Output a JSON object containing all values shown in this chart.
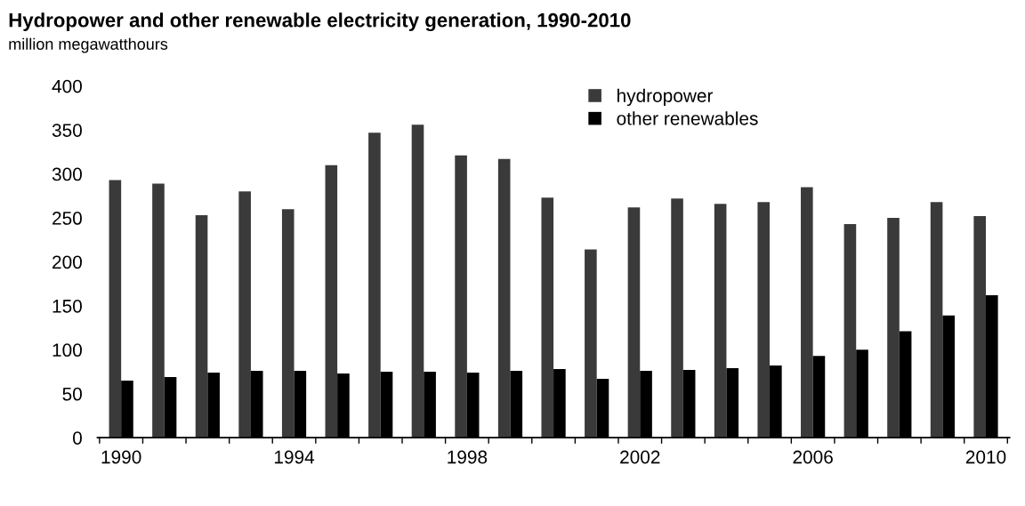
{
  "chart_data": {
    "type": "bar",
    "title": "Hydropower and other renewable electricity generation, 1990-2010",
    "subtitle": "million megawatthours",
    "categories": [
      "1990",
      null,
      null,
      null,
      "1994",
      null,
      null,
      null,
      "1998",
      null,
      null,
      null,
      "2002",
      null,
      null,
      null,
      "2006",
      null,
      null,
      null,
      "2010"
    ],
    "series": [
      {
        "name": "hydropower",
        "color": "#3a3a3a",
        "values": [
          293,
          289,
          253,
          280,
          260,
          310,
          347,
          356,
          321,
          317,
          273,
          214,
          262,
          272,
          266,
          268,
          285,
          243,
          250,
          268,
          252
        ]
      },
      {
        "name": "other renewables",
        "color": "#000000",
        "values": [
          65,
          69,
          74,
          76,
          76,
          73,
          75,
          75,
          74,
          76,
          78,
          67,
          76,
          77,
          79,
          82,
          93,
          100,
          121,
          139,
          162
        ]
      }
    ],
    "ylim": [
      0,
      400
    ],
    "yticks": [
      0,
      50,
      100,
      150,
      200,
      250,
      300,
      350,
      400
    ],
    "grid": false,
    "legend": "top right"
  }
}
